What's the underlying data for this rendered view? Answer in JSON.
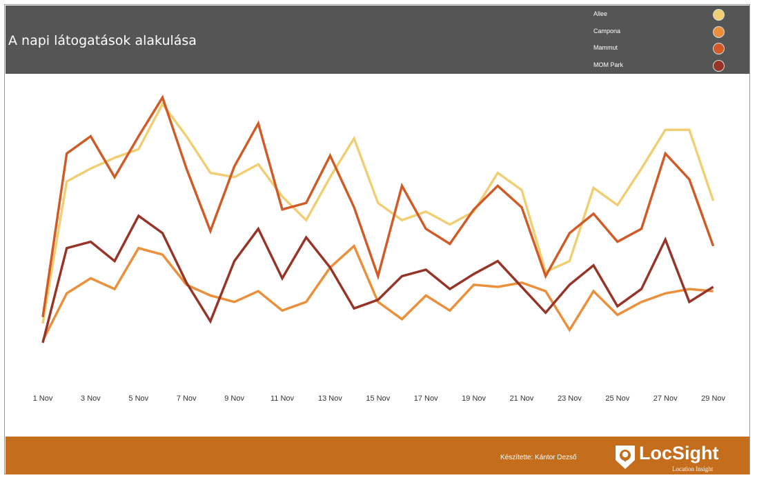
{
  "header": {
    "title": "A napi látogatások alakulása"
  },
  "footer": {
    "credit": "Készítette: Kántor Dezső",
    "logo_text": "LocSight",
    "logo_subtext": "Location Insight"
  },
  "chart_data": {
    "type": "line",
    "title": "A napi látogatások alakulása",
    "xlabel": "",
    "ylabel": "",
    "y_axis_visible": false,
    "grid": false,
    "legend_placement": "top-right",
    "x": [
      "1 Nov",
      "2 Nov",
      "3 Nov",
      "4 Nov",
      "5 Nov",
      "6 Nov",
      "7 Nov",
      "8 Nov",
      "9 Nov",
      "10 Nov",
      "11 Nov",
      "12 Nov",
      "13 Nov",
      "14 Nov",
      "15 Nov",
      "16 Nov",
      "17 Nov",
      "18 Nov",
      "19 Nov",
      "20 Nov",
      "21 Nov",
      "22 Nov",
      "23 Nov",
      "24 Nov",
      "25 Nov",
      "26 Nov",
      "27 Nov",
      "28 Nov",
      "29 Nov"
    ],
    "tick_labels": [
      "1 Nov",
      "3 Nov",
      "5 Nov",
      "7 Nov",
      "9 Nov",
      "11 Nov",
      "13 Nov",
      "15 Nov",
      "17 Nov",
      "19 Nov",
      "21 Nov",
      "23 Nov",
      "25 Nov",
      "27 Nov",
      "29 Nov"
    ],
    "ylim": [
      0,
      100
    ],
    "series": [
      {
        "name": "Allee",
        "color": "#f0cf74",
        "values": [
          8,
          74,
          80,
          85,
          89,
          110,
          95,
          78,
          76,
          82,
          67,
          56,
          76,
          94,
          64,
          56,
          60,
          54,
          60,
          78,
          70,
          32,
          37,
          71,
          63,
          80,
          98,
          98,
          65
        ]
      },
      {
        "name": "Campona",
        "color": "#eb8f3a",
        "values": [
          0,
          22,
          29,
          24,
          43,
          40,
          26,
          21,
          18,
          23,
          14,
          18,
          34,
          44,
          18,
          10,
          21,
          14,
          26,
          25,
          27,
          23,
          5,
          23,
          12,
          18,
          22,
          24,
          23
        ]
      },
      {
        "name": "Mammut",
        "color": "#d15b27",
        "values": [
          11,
          87,
          95,
          76,
          95,
          113,
          80,
          51,
          81,
          101,
          61,
          64,
          86,
          62,
          30,
          72,
          52,
          45,
          61,
          72,
          62,
          30,
          50,
          59,
          46,
          52,
          87,
          75,
          44
        ]
      },
      {
        "name": "MOM Park",
        "color": "#963527",
        "values": [
          -1,
          43,
          46,
          37,
          58,
          50,
          27,
          9,
          37,
          52,
          29,
          48,
          34,
          15,
          19,
          30,
          33,
          24,
          31,
          37,
          25,
          13,
          26,
          35,
          16,
          24,
          47,
          18,
          25
        ]
      }
    ]
  }
}
